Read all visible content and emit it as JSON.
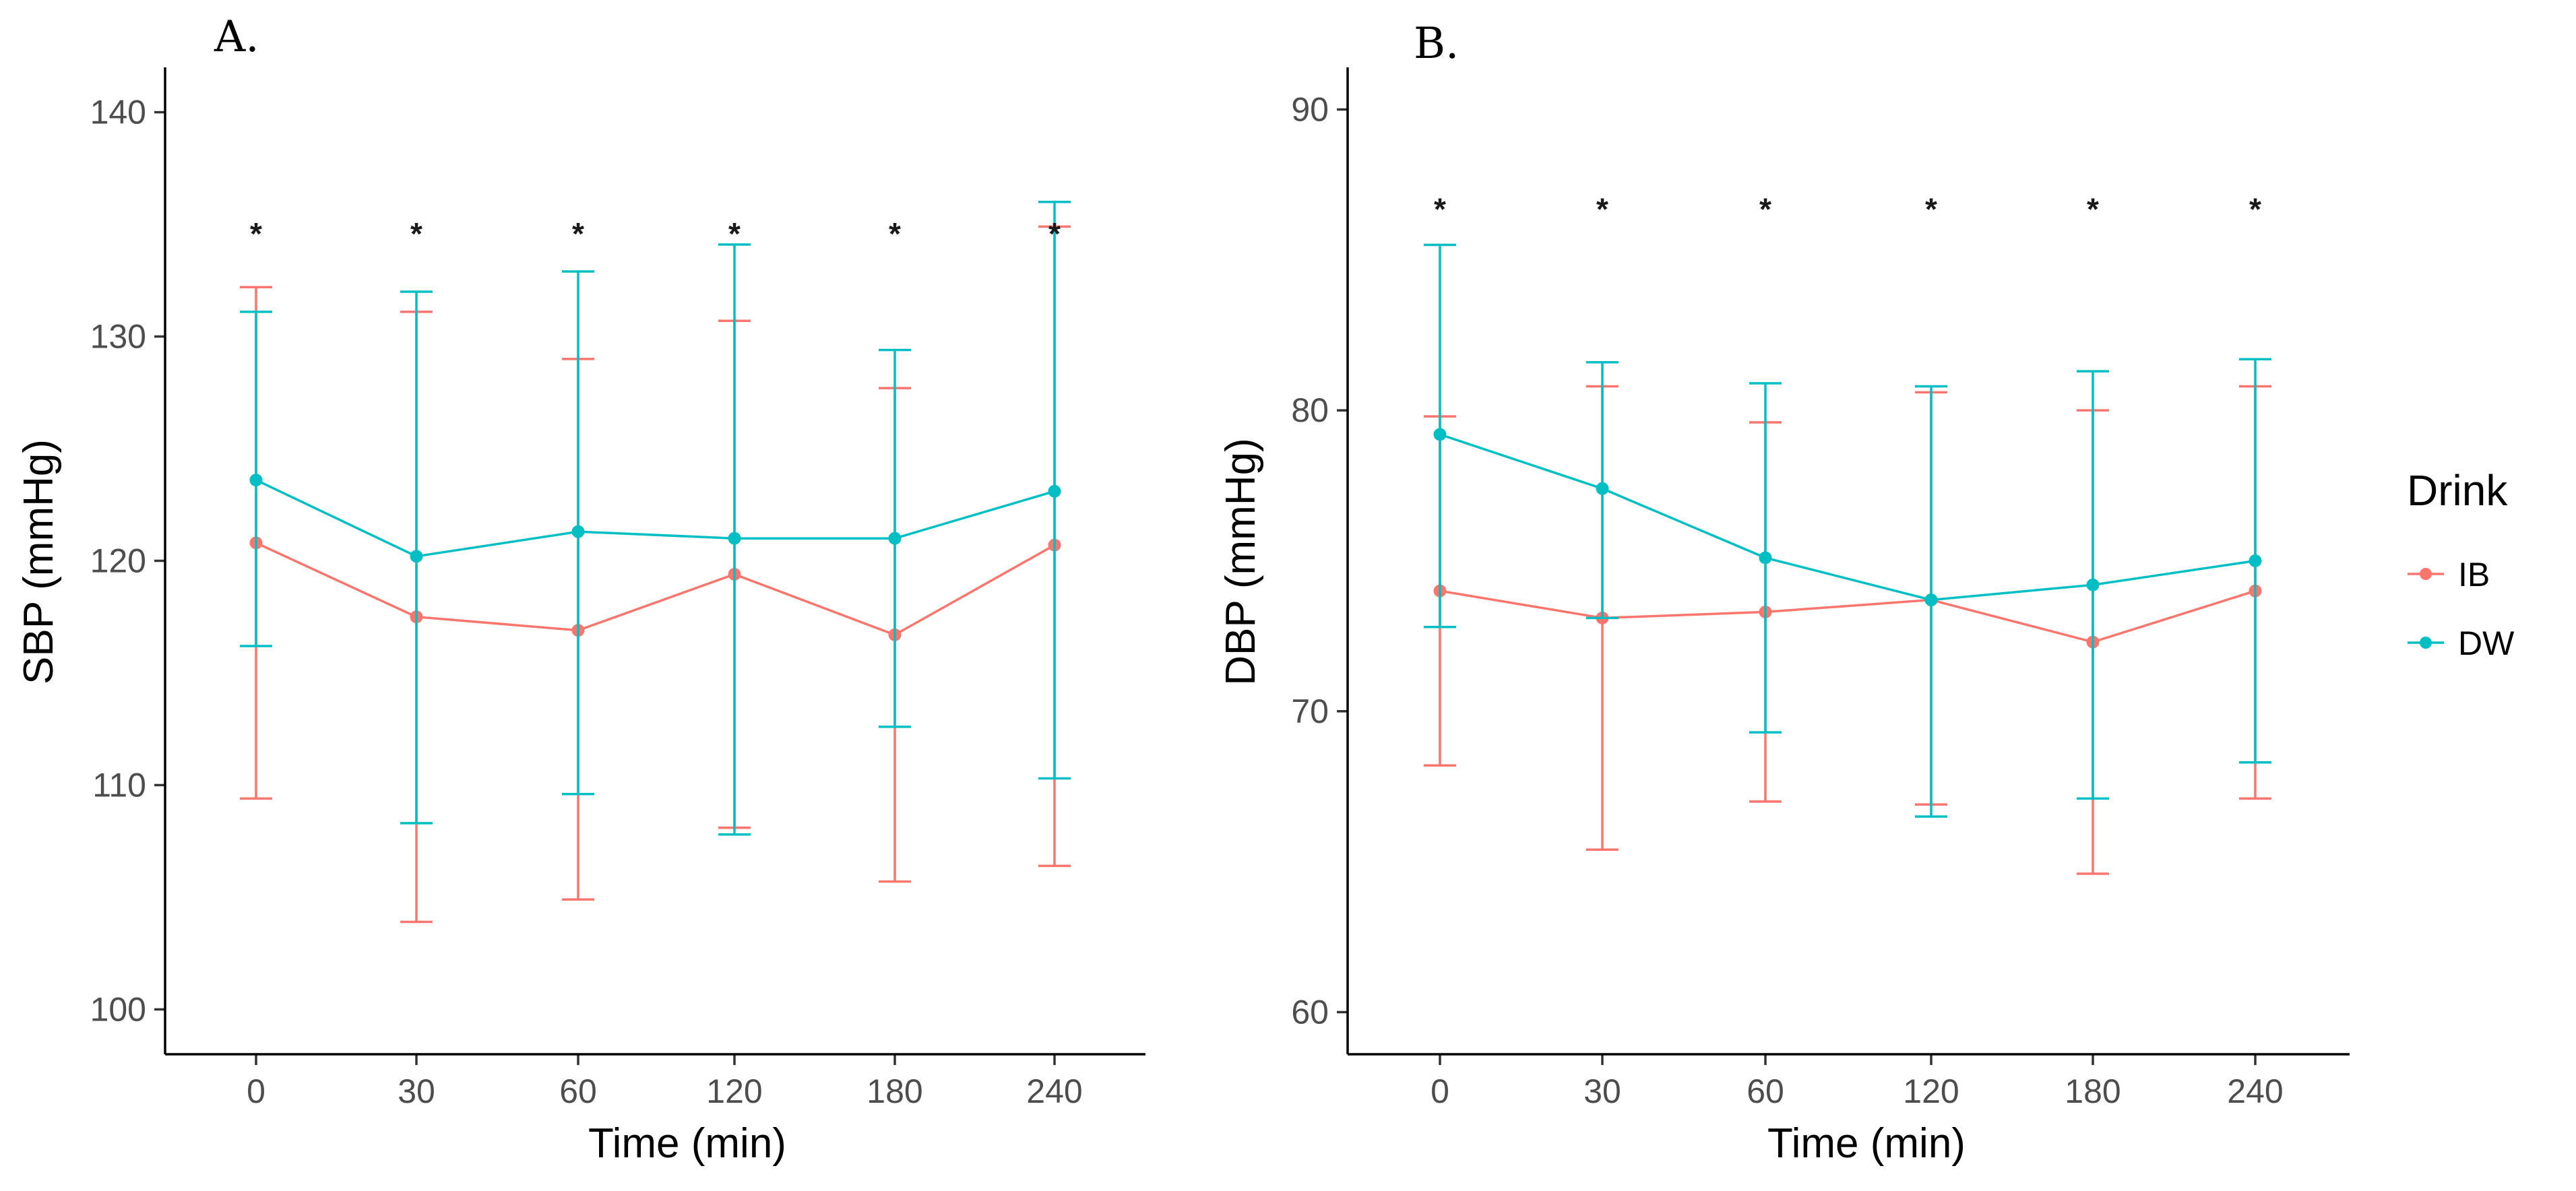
{
  "chart_data": [
    {
      "type": "line",
      "panel": "A.",
      "xlabel": "Time (min)",
      "ylabel": "SBP (mmHg)",
      "categories": [
        "0",
        "30",
        "60",
        "120",
        "180",
        "240"
      ],
      "ylim": [
        98,
        142
      ],
      "yticks": [
        100,
        110,
        120,
        130,
        140
      ],
      "significance": [
        "*",
        "*",
        "*",
        "*",
        "*",
        "*"
      ],
      "significance_y": 135,
      "series": [
        {
          "name": "IB",
          "color": "#F8766D",
          "values": [
            120.8,
            117.5,
            116.9,
            119.4,
            116.7,
            120.7
          ],
          "lower": [
            109.4,
            103.9,
            104.9,
            108.1,
            105.7,
            106.4
          ],
          "upper": [
            132.2,
            131.1,
            129.0,
            130.7,
            127.7,
            134.9
          ]
        },
        {
          "name": "DW",
          "color": "#00BFC4",
          "values": [
            123.6,
            120.2,
            121.3,
            121.0,
            121.0,
            123.1
          ],
          "lower": [
            116.2,
            108.3,
            109.6,
            107.8,
            112.6,
            110.3
          ],
          "upper": [
            131.1,
            132.0,
            132.9,
            134.1,
            129.4,
            136.0
          ]
        }
      ]
    },
    {
      "type": "line",
      "panel": "B.",
      "xlabel": "Time (min)",
      "ylabel": "DBP (mmHg)",
      "categories": [
        "0",
        "30",
        "60",
        "120",
        "180",
        "240"
      ],
      "ylim": [
        58.6,
        91.4
      ],
      "yticks": [
        60,
        70,
        80,
        90
      ],
      "significance": [
        "*",
        "*",
        "*",
        "*",
        "*",
        "*"
      ],
      "significance_y": 87,
      "series": [
        {
          "name": "IB",
          "color": "#F8766D",
          "values": [
            74.0,
            73.1,
            73.3,
            73.7,
            72.3,
            74.0
          ],
          "lower": [
            68.2,
            65.4,
            67.0,
            66.9,
            64.6,
            67.1
          ],
          "upper": [
            79.8,
            80.8,
            79.6,
            80.6,
            80.0,
            80.8
          ]
        },
        {
          "name": "DW",
          "color": "#00BFC4",
          "values": [
            79.2,
            77.4,
            75.1,
            73.7,
            74.2,
            75.0
          ],
          "lower": [
            72.8,
            73.1,
            69.3,
            66.5,
            67.1,
            68.3
          ],
          "upper": [
            85.5,
            81.6,
            80.9,
            80.8,
            81.3,
            81.7
          ]
        }
      ]
    }
  ],
  "legend": {
    "title": "Drink",
    "items": [
      {
        "label": "IB",
        "color": "#F8766D"
      },
      {
        "label": "DW",
        "color": "#00BFC4"
      }
    ]
  }
}
